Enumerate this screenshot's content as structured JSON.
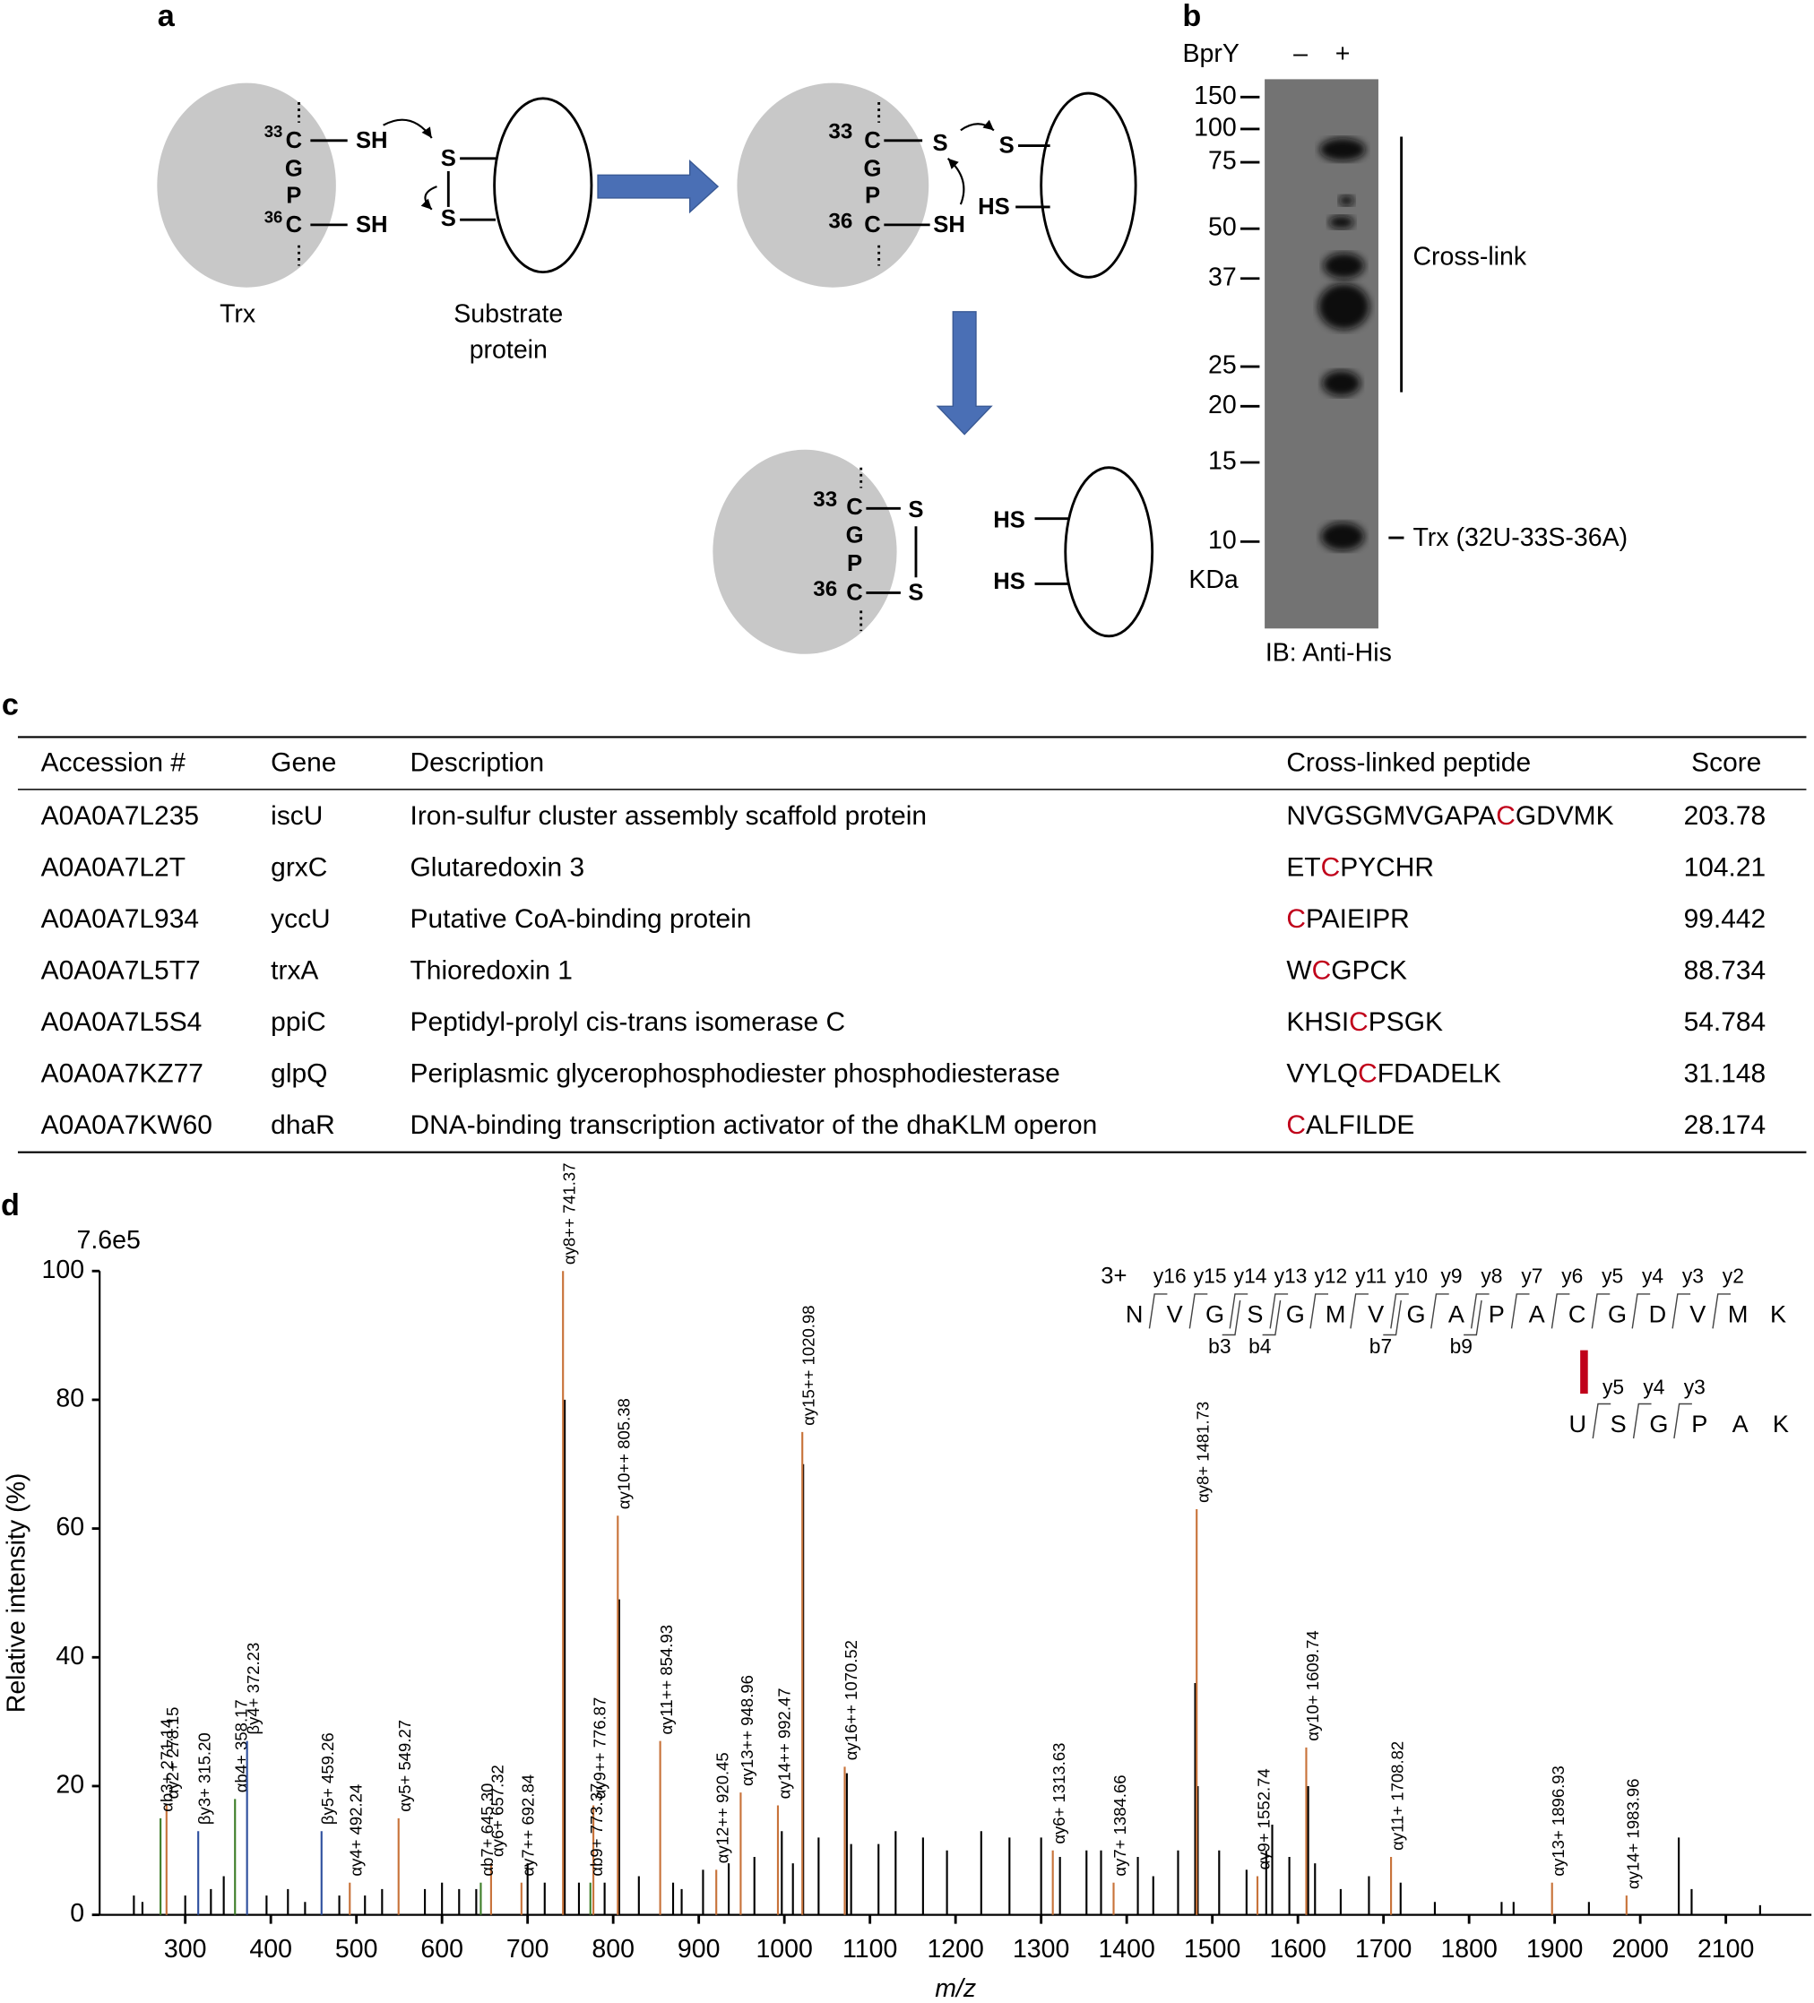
{
  "panel_a": {
    "label": "a",
    "texts": [
      "33",
      "C",
      "G",
      "P",
      "36",
      "C",
      "SH",
      "SH",
      "S",
      "S",
      "Trx",
      "Substrate",
      "protein",
      "33",
      "C",
      "G",
      "P",
      "36",
      "C",
      "S",
      "S",
      "HS",
      "SH",
      "33",
      "C",
      "G",
      "P",
      "36",
      "C",
      "S",
      "S",
      "HS",
      "HS"
    ]
  },
  "panel_b": {
    "label": "b",
    "header": "BprY",
    "lanes": [
      "–",
      "+"
    ],
    "markers": [
      150,
      100,
      75,
      50,
      37,
      25,
      20,
      15,
      10
    ],
    "unit": "KDa",
    "cross_link_label": "Cross-link",
    "band_label": "Trx (32U-33S-36A)",
    "blot": "IB: Anti-His"
  },
  "panel_c": {
    "label": "c",
    "columns": [
      "Accession #",
      "Gene",
      "Description",
      "Cross-linked peptide",
      "Score"
    ],
    "crosslinked_residue": "C",
    "highlight_color": "#c0001a",
    "rows": [
      [
        "A0A0A7L235",
        "iscU",
        "Iron-sulfur cluster assembly scaffold protein",
        [
          "NVGSGMVGAPA",
          "C",
          "GDVMK"
        ],
        203.78
      ],
      [
        "A0A0A7L2T",
        "grxC",
        "Glutaredoxin 3",
        [
          "ET",
          "C",
          "PYCHR"
        ],
        104.21
      ],
      [
        "A0A0A7L934",
        "yccU",
        "Putative CoA-binding protein",
        [
          "C",
          "PAIEIPR"
        ],
        99.442
      ],
      [
        "A0A0A7L5T7",
        "trxA",
        "Thioredoxin 1",
        [
          "W",
          "C",
          "GPCK"
        ],
        88.734
      ],
      [
        "A0A0A7L5S4",
        "ppiC",
        "Peptidyl-prolyl cis-trans isomerase C",
        [
          "KHSI",
          "C",
          "PSGK"
        ],
        54.784
      ],
      [
        "A0A0A7KZ77",
        "glpQ",
        "Periplasmic glycerophosphodiester phosphodiesterase",
        [
          "VYLQ",
          "C",
          "FDADELK"
        ],
        31.148
      ],
      [
        "A0A0A7KW60",
        "dhaR",
        "DNA-binding transcription activator of the dhaKLM operon",
        [
          "C",
          "ALFILDE"
        ],
        28.174
      ]
    ]
  },
  "panel_d_label": "d",
  "panel_d_inset": {
    "charge": "3+",
    "alpha_sequence": [
      "N",
      "V",
      "G",
      "S",
      "G",
      "M",
      "V",
      "G",
      "A",
      "P",
      "A",
      "C",
      "G",
      "D",
      "V",
      "M",
      "K"
    ],
    "alpha_y_ions": [
      "y16",
      "y15",
      "y14",
      "y13",
      "y12",
      "y11",
      "y10",
      "y9",
      "y8",
      "y7",
      "y6",
      "y5",
      "y4",
      "y3",
      "y2"
    ],
    "alpha_b_ions": [
      "b3",
      "b4",
      "b7",
      "b9"
    ],
    "beta_sequence": [
      "U",
      "S",
      "G",
      "P",
      "A",
      "K"
    ],
    "beta_y_ions": [
      "y5",
      "y4",
      "y3"
    ],
    "y_color": "#c8733a",
    "b_color": "#3f7f2a",
    "beta_color": "#2e4f9e",
    "link_color": "#c0001a"
  },
  "chart_data": {
    "type": "stem",
    "title": "7.6e5",
    "xlabel": "m/z",
    "ylabel": "Relative intensity (%)",
    "xlim": [
      200,
      2200
    ],
    "ylim": [
      0,
      100
    ],
    "xticks": [
      300,
      400,
      500,
      600,
      700,
      800,
      900,
      1000,
      1100,
      1200,
      1300,
      1400,
      1500,
      1600,
      1700,
      1800,
      1900,
      2000,
      2100
    ],
    "yticks": [
      0,
      20,
      40,
      60,
      80,
      100
    ],
    "series": [
      {
        "color": "#000000",
        "x": [
          240,
          250,
          300,
          330,
          345,
          395,
          420,
          440,
          480,
          510,
          530,
          580,
          600,
          620,
          640,
          700,
          720,
          743.4,
          760,
          790,
          807,
          830,
          870,
          880,
          905,
          935,
          965,
          997,
          1010,
          1022,
          1040,
          1073,
          1078,
          1110,
          1130,
          1162,
          1190,
          1230,
          1263,
          1300,
          1322,
          1353,
          1370,
          1413,
          1431,
          1460,
          1480,
          1483,
          1508,
          1540,
          1563,
          1570,
          1590,
          1612,
          1620,
          1650,
          1683,
          1720,
          1760,
          1838,
          1852,
          1940,
          2045,
          2060,
          2140
        ],
        "values": [
          3,
          2,
          3,
          4,
          6,
          3,
          4,
          2,
          3,
          3,
          4,
          4,
          5,
          4,
          4,
          8,
          5,
          80,
          5,
          5,
          49,
          6,
          5,
          4,
          7,
          8,
          9,
          13,
          8,
          70,
          12,
          22,
          11,
          11,
          13,
          12,
          10,
          13,
          12,
          12,
          9,
          10,
          10,
          9,
          6,
          10,
          36,
          20,
          10,
          7,
          10,
          14,
          9,
          20,
          8,
          4,
          6,
          5,
          2,
          2,
          2,
          2,
          12,
          4,
          1.5
        ]
      },
      {
        "color": "#c8733a",
        "x": [
          278.15,
          492.24,
          549.27,
          657.32,
          692.84,
          741.37,
          776.87,
          805.38,
          854.93,
          920.45,
          948.96,
          992.47,
          1020.98,
          1070.52,
          1313.63,
          1384.66,
          1481.73,
          1552.74,
          1609.74,
          1708.82,
          1896.93,
          1983.96
        ],
        "values": [
          17,
          5,
          15,
          8,
          5,
          100,
          17,
          62,
          27,
          7,
          19,
          17,
          75,
          23,
          10,
          5,
          63,
          6,
          26,
          9,
          5,
          3
        ],
        "labels": [
          "αy2+ 278.15",
          "αy4+ 492.24",
          "αy5+ 549.27",
          "αy6+ 657.32",
          "αy7++ 692.84",
          "αy8++ 741.37",
          "αy9++ 776.87",
          "αy10++ 805.38",
          "αy11++ 854.93",
          "αy12++ 920.45",
          "αy13++ 948.96",
          "αy14++ 992.47",
          "αy15++ 1020.98",
          "αy16++ 1070.52",
          "αy6+ 1313.63",
          "αy7+ 1384.66",
          "αy8+ 1481.73",
          "αy9+ 1552.74",
          "αy10+ 1609.74",
          "αy11+ 1708.82",
          "αy13+ 1896.93",
          "αy14+ 1983.96"
        ]
      },
      {
        "color": "#3f7f2a",
        "x": [
          271.14,
          358.17,
          645.3,
          773.37
        ],
        "values": [
          15,
          18,
          5,
          5
        ],
        "labels": [
          "αb3+ 271.14",
          "αb4+ 358.17",
          "αb7+ 645.30",
          "αb9+ 773.37"
        ]
      },
      {
        "color": "#2e4f9e",
        "x": [
          315.2,
          372.23,
          459.26
        ],
        "values": [
          13,
          27,
          13
        ],
        "labels": [
          "βy3+ 315.20",
          "βy4+ 372.23",
          "βy5+ 459.26"
        ]
      }
    ]
  }
}
